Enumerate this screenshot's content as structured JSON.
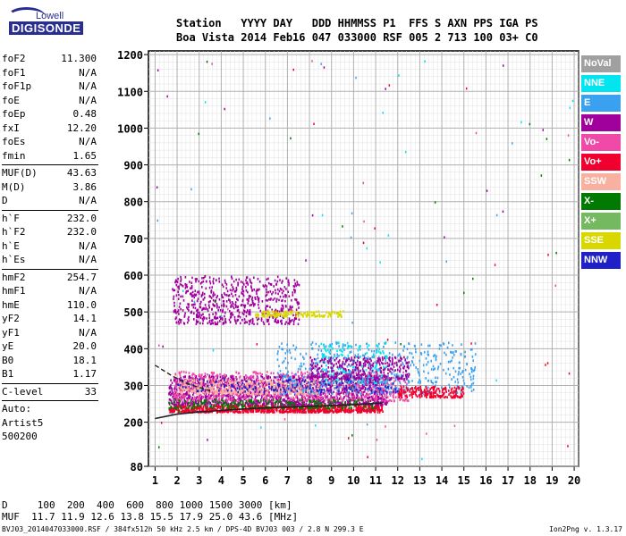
{
  "logo": {
    "line1": "Lowell",
    "line2": "DIGISONDE"
  },
  "header": {
    "row1": "Station   YYYY DAY   DDD HHMMSS P1  FFS S AXN PPS IGA PS",
    "row2": "Boa Vista 2014 Feb16 047 033000 RSF 005 2 713 100 03+ C0"
  },
  "params": [
    {
      "name": "foF2",
      "value": "11.300"
    },
    {
      "name": "foF1",
      "value": "N/A"
    },
    {
      "name": "foF1p",
      "value": "N/A"
    },
    {
      "name": "foE",
      "value": "N/A"
    },
    {
      "name": "foEp",
      "value": "0.48"
    },
    {
      "name": "fxI",
      "value": "12.20"
    },
    {
      "name": "foEs",
      "value": "N/A"
    },
    {
      "name": "fmin",
      "value": "1.65"
    },
    {
      "name": "MUF(D)",
      "value": "43.63"
    },
    {
      "name": "M(D)",
      "value": "3.86"
    },
    {
      "name": "D",
      "value": "N/A"
    },
    {
      "name": "h`F",
      "value": "232.0"
    },
    {
      "name": "h`F2",
      "value": "232.0"
    },
    {
      "name": "h`E",
      "value": "N/A"
    },
    {
      "name": "h`Es",
      "value": "N/A"
    },
    {
      "name": "hmF2",
      "value": "254.7"
    },
    {
      "name": "hmF1",
      "value": "N/A"
    },
    {
      "name": "hmE",
      "value": "110.0"
    },
    {
      "name": "yF2",
      "value": "14.1"
    },
    {
      "name": "yF1",
      "value": "N/A"
    },
    {
      "name": "yE",
      "value": "20.0"
    },
    {
      "name": "B0",
      "value": "18.1"
    },
    {
      "name": "B1",
      "value": "1.17"
    },
    {
      "name": "C-level",
      "value": "33"
    },
    {
      "name": "Auto:",
      "value": ""
    },
    {
      "name": "Artist5",
      "value": ""
    },
    {
      "name": "500200",
      "value": ""
    }
  ],
  "legend": [
    {
      "label": "NoVal",
      "color": "#a0a0a0"
    },
    {
      "label": "NNE",
      "color": "#00e5f0"
    },
    {
      "label": "E",
      "color": "#3aa0f0"
    },
    {
      "label": "W",
      "color": "#a0009c"
    },
    {
      "label": "Vo-",
      "color": "#f04aa8"
    },
    {
      "label": "Vo+",
      "color": "#f0002e"
    },
    {
      "label": "SSW",
      "color": "#f8b0a0"
    },
    {
      "label": "X-",
      "color": "#007a00"
    },
    {
      "label": "X+",
      "color": "#74b860"
    },
    {
      "label": "SSE",
      "color": "#d8d800"
    },
    {
      "label": "NNW",
      "color": "#2020c8"
    }
  ],
  "bottom": {
    "muf_line1": "D     100  200  400  600  800 1000 1500 3000 [km]",
    "muf_line2": "MUF  11.7 11.9 12.6 13.8 15.5 17.9 25.0 43.6 [MHz]"
  },
  "footer": {
    "left": "BVJ03_2014047033000.RSF / 384fx512h 50 kHz 2.5 km / DPS-4D BVJ03 003 / 2.8 N 299.3 E",
    "right": "Ion2Png v. 1.3.17"
  },
  "chart_data": {
    "type": "scatter",
    "x_ticks": [
      1,
      2,
      3,
      4,
      5,
      6,
      7,
      8,
      9,
      10,
      11,
      12,
      13,
      14,
      15,
      16,
      17,
      18,
      19,
      20
    ],
    "y_ticks": [
      80,
      200,
      300,
      400,
      500,
      600,
      700,
      800,
      900,
      1000,
      1100,
      1200
    ],
    "xlim": [
      0.7,
      20.2
    ],
    "ylim": [
      80,
      1210
    ],
    "grid": true,
    "legend_position": "right",
    "clusters": [
      {
        "name": "Vo+",
        "x": [
          1.6,
          11.3
        ],
        "y": [
          230,
          250
        ],
        "density": 900
      },
      {
        "name": "W",
        "x": [
          1.6,
          11.5
        ],
        "y": [
          250,
          330
        ],
        "density": 1500
      },
      {
        "name": "Vo-",
        "x": [
          1.8,
          12.5
        ],
        "y": [
          260,
          340
        ],
        "density": 700
      },
      {
        "name": "SSW",
        "x": [
          2.0,
          8.5
        ],
        "y": [
          280,
          320
        ],
        "density": 450
      },
      {
        "name": "E",
        "x": [
          6.5,
          15.5
        ],
        "y": [
          280,
          420
        ],
        "density": 550
      },
      {
        "name": "NNE",
        "x": [
          8.5,
          11.5
        ],
        "y": [
          310,
          420
        ],
        "density": 180
      },
      {
        "name": "W",
        "x": [
          8.0,
          12.5
        ],
        "y": [
          320,
          380
        ],
        "density": 350
      },
      {
        "name": "W",
        "x": [
          1.8,
          7.5
        ],
        "y": [
          470,
          600
        ],
        "density": 650
      },
      {
        "name": "SSE",
        "x": [
          5.5,
          9.5
        ],
        "y": [
          490,
          505
        ],
        "density": 150
      },
      {
        "name": "Vo+",
        "x": [
          12.0,
          15.0
        ],
        "y": [
          270,
          300
        ],
        "density": 200
      },
      {
        "name": "X-",
        "x": [
          1.6,
          11.0
        ],
        "y": [
          240,
          265
        ],
        "density": 250
      },
      {
        "name": "NNW",
        "x": [
          2.0,
          12.0
        ],
        "y": [
          285,
          320
        ],
        "density": 150
      }
    ],
    "profile_curve": {
      "x": [
        1.0,
        2.0,
        3.0,
        4.0,
        5.0,
        6.0,
        7.0,
        8.0,
        9.0,
        10.0,
        11.3
      ],
      "y": [
        210,
        222,
        228,
        232,
        236,
        239,
        241,
        243,
        245,
        248,
        252
      ]
    },
    "dashed_curve": {
      "x": [
        1.0,
        1.8,
        2.6,
        3.5
      ],
      "y": [
        355,
        325,
        302,
        285
      ]
    }
  }
}
